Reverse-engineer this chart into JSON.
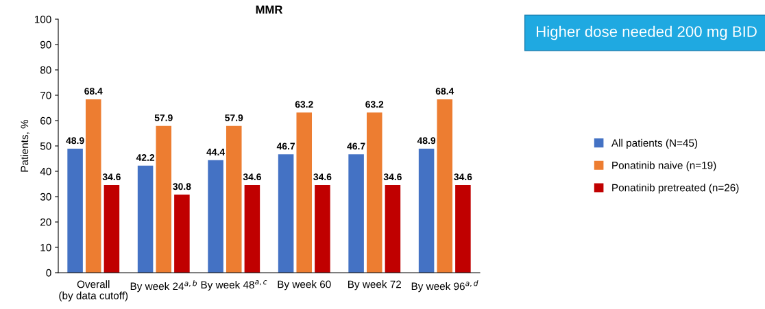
{
  "chart_data": {
    "type": "bar",
    "title": "MMR",
    "ylabel": "Patients, %",
    "categories": [
      "Overall\n(by data cutoff)",
      "By week 24$^{a,b}$",
      "By week 48$^{a,c}$",
      "By week 60",
      "By week 72",
      "By week 96$^{a,d}$"
    ],
    "series": [
      {
        "name": "All patients (N=45)",
        "color": "#4472c4",
        "values": [
          48.9,
          42.2,
          44.4,
          46.7,
          46.7,
          48.9
        ]
      },
      {
        "name": "Ponatinib naive (n=19)",
        "color": "#ed7d31",
        "values": [
          68.4,
          57.9,
          57.9,
          63.2,
          63.2,
          68.4
        ]
      },
      {
        "name": "Ponatinib pretreated (n=26)",
        "color": "#c00000",
        "values": [
          34.6,
          30.8,
          34.6,
          34.6,
          34.6,
          34.6
        ]
      }
    ],
    "ylim": [
      0,
      100
    ],
    "yticks": [
      0,
      10,
      20,
      30,
      40,
      50,
      60,
      70,
      80,
      90,
      100
    ],
    "data_labels": true,
    "legend": "right",
    "grid": false,
    "annotations": [
      "Higher dose needed 200 mg BID"
    ]
  }
}
